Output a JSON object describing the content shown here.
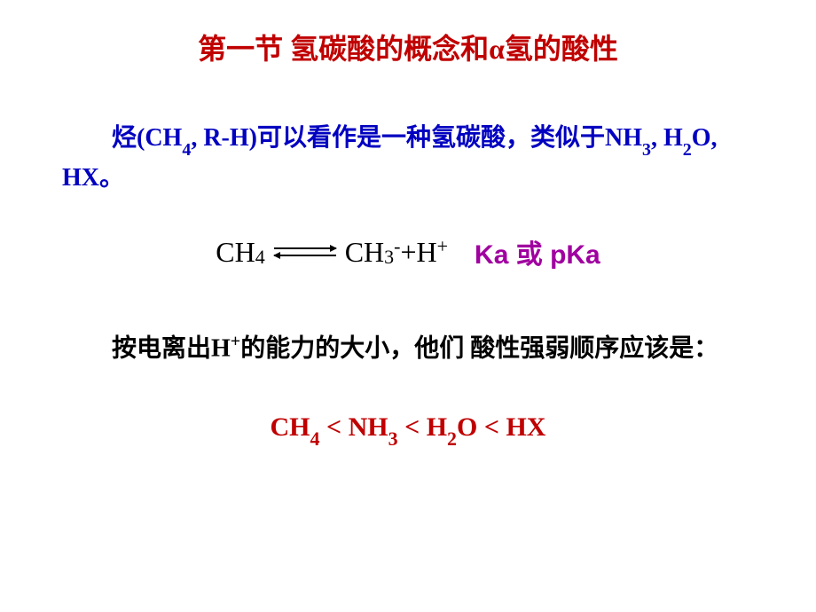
{
  "title": "第一节 氢碳酸的概念和α氢的酸性",
  "paragraph1": {
    "prefix": "烃(CH",
    "sub1": "4",
    "mid1": ", R-H)可以看作是一种氢碳酸，类似于NH",
    "sub2": "3",
    "mid2": ", H",
    "sub3": "2",
    "end": "O, HX。"
  },
  "equation": {
    "lhs": "CH",
    "lhs_sub": "4",
    "rhs1": "CH",
    "rhs1_sub": "3",
    "rhs1_sup": "-",
    "plus": " + ",
    "rhs2": "H",
    "rhs2_sup": "+"
  },
  "ka_label": "Ka 或 pKa",
  "paragraph2": {
    "prefix": "按电离出H",
    "sup": "+",
    "rest": "的能力的大小，他们 酸性强弱顺序应该是："
  },
  "order": {
    "t1": "CH",
    "s1": "4",
    "lt1": " < NH",
    "s2": "3",
    "lt2": " < H",
    "s3": "2",
    "lt3": "O < HX"
  },
  "colors": {
    "title": "#c00000",
    "blue_text": "#0000c0",
    "equation_text": "#000000",
    "ka_text": "#a000a0",
    "black_text": "#000000",
    "order_text": "#c00000",
    "background": "#ffffff"
  },
  "typography": {
    "title_fontsize": 32,
    "body_fontsize": 28,
    "equation_fontsize": 32,
    "ka_fontsize": 30,
    "order_fontsize": 30
  }
}
